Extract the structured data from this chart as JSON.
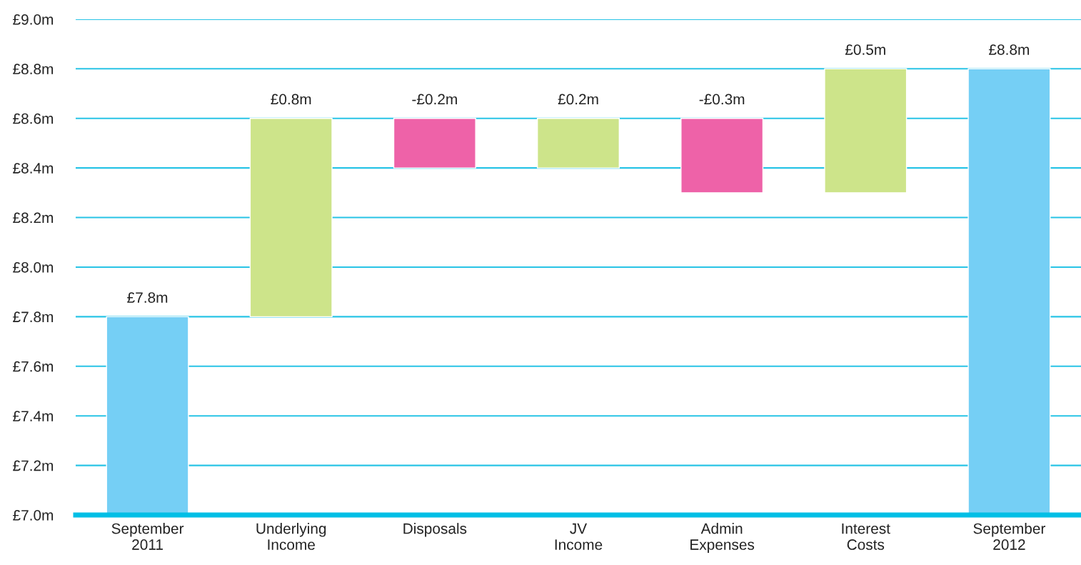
{
  "chart_data": {
    "type": "bar",
    "categories": [
      "September\n2011",
      "Underlying\nIncome",
      "Disposals",
      "JV\nIncome",
      "Admin\nExpenses",
      "Interest\nCosts",
      "September\n2012"
    ],
    "values": [
      7.8,
      0.8,
      -0.2,
      0.2,
      -0.3,
      0.5,
      8.8
    ],
    "base": [
      null,
      7.8,
      8.6,
      8.4,
      8.6,
      8.3,
      null
    ],
    "colors": [
      "#75cff5",
      "#cde48a",
      "#ee62a8",
      "#cde48a",
      "#ee62a8",
      "#cde48a",
      "#75cff5"
    ],
    "value_labels": [
      "£7.8m",
      "£0.8m",
      "-£0.2m",
      "£0.2m",
      "-£0.3m",
      "£0.5m",
      "£8.8m"
    ],
    "ylim": [
      7.0,
      9.0
    ],
    "yticks": [
      {
        "value": 7.0,
        "label": "£7.0m"
      },
      {
        "value": 7.2,
        "label": "£7.2m"
      },
      {
        "value": 7.4,
        "label": "£7.4m"
      },
      {
        "value": 7.6,
        "label": "£7.6m"
      },
      {
        "value": 7.8,
        "label": "£7.8m"
      },
      {
        "value": 8.0,
        "label": "£8.0m"
      },
      {
        "value": 8.2,
        "label": "£8.2m"
      },
      {
        "value": 8.4,
        "label": "£8.4m"
      },
      {
        "value": 8.6,
        "label": "£8.6m"
      },
      {
        "value": 8.8,
        "label": "£8.8m"
      },
      {
        "value": 9.0,
        "label": "£9.0m"
      }
    ],
    "grid": "y"
  }
}
